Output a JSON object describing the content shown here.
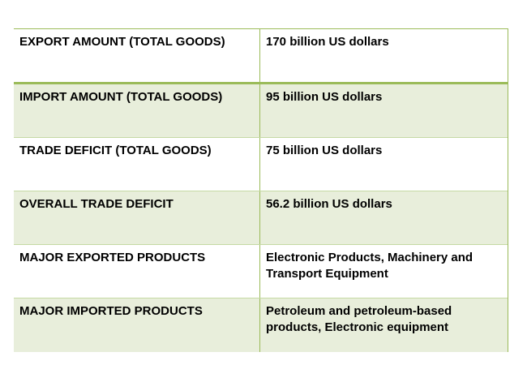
{
  "table": {
    "rows": [
      {
        "label": "EXPORT AMOUNT (TOTAL GOODS)",
        "value": "170 billion US dollars"
      },
      {
        "label": "IMPORT AMOUNT (TOTAL GOODS)",
        "value": "95 billion US dollars"
      },
      {
        "label": "TRADE DEFICIT (TOTAL GOODS)",
        "value": "75 billion US dollars"
      },
      {
        "label": "OVERALL TRADE DEFICIT",
        "value": "56.2 billion US dollars"
      },
      {
        "label": "MAJOR EXPORTED PRODUCTS",
        "value": "Electronic Products, Machinery and Transport Equipment"
      },
      {
        "label": "MAJOR IMPORTED PRODUCTS",
        "value": "Petroleum and petroleum-based products, Electronic equipment"
      }
    ]
  },
  "colors": {
    "border": "#9bbb59",
    "shaded_row": "#e8eedb"
  }
}
